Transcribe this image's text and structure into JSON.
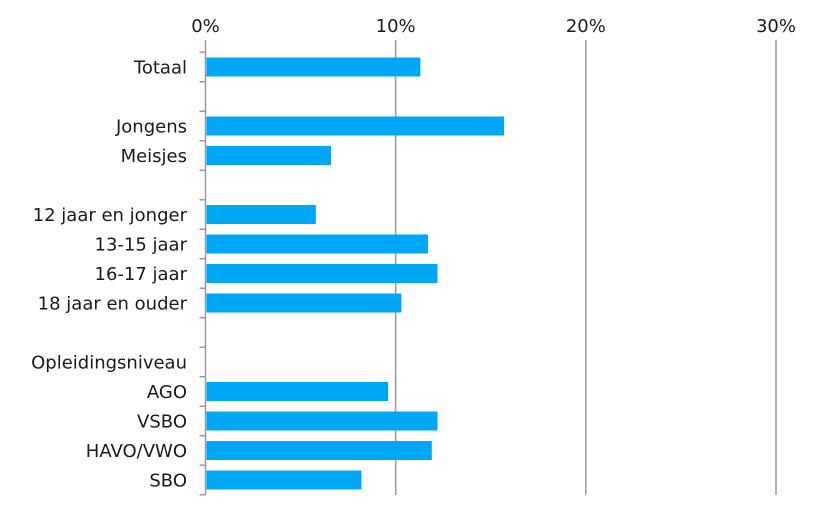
{
  "chart_data": {
    "type": "bar",
    "orientation": "horizontal",
    "title": "",
    "xlabel": "",
    "ylabel": "",
    "xlim": [
      0,
      30
    ],
    "x_ticks": [
      0,
      10,
      20,
      30
    ],
    "x_tick_labels": [
      "0%",
      "10%",
      "20%",
      "30%"
    ],
    "x_axis_position": "top",
    "grid": "vertical",
    "legend": "none",
    "bar_color": "#00a7f5",
    "axis_color": "#999999",
    "categories": [
      "Totaal",
      "",
      "Jongens",
      "Meisjes",
      "",
      "12 jaar en jonger",
      "13-15 jaar",
      "16-17 jaar",
      "18 jaar en ouder",
      "",
      "Opleidingsniveau",
      "AGO",
      "VSBO",
      "HAVO/VWO",
      "SBO"
    ],
    "values": [
      11.3,
      null,
      15.7,
      6.6,
      null,
      5.8,
      11.7,
      12.2,
      10.3,
      null,
      null,
      9.6,
      12.2,
      11.9,
      8.2
    ]
  }
}
